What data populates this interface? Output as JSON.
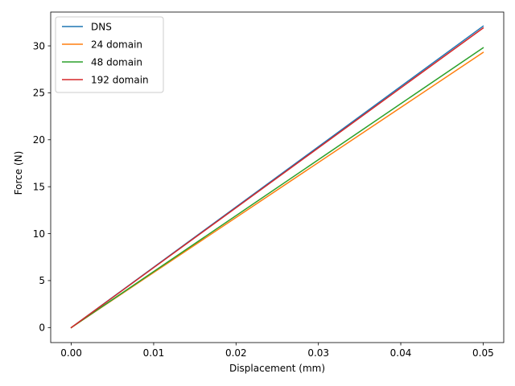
{
  "chart_data": {
    "type": "line",
    "title": "",
    "xlabel": "Displacement (mm)",
    "ylabel": "Force (N)",
    "xlim": [
      -0.0025,
      0.0525
    ],
    "ylim": [
      -1.6,
      33.6
    ],
    "x_ticks": [
      0.0,
      0.01,
      0.02,
      0.03,
      0.04,
      0.05
    ],
    "x_tick_labels": [
      "0.00",
      "0.01",
      "0.02",
      "0.03",
      "0.04",
      "0.05"
    ],
    "y_ticks": [
      0,
      5,
      10,
      15,
      20,
      25,
      30
    ],
    "y_tick_labels": [
      "0",
      "5",
      "10",
      "15",
      "20",
      "25",
      "30"
    ],
    "grid": false,
    "legend_position": "top-left",
    "series": [
      {
        "name": "DNS",
        "color": "#1f77b4",
        "x": [
          0.0,
          0.05
        ],
        "y": [
          0,
          32.1
        ]
      },
      {
        "name": "24 domain",
        "color": "#ff7f0e",
        "x": [
          0.0,
          0.05
        ],
        "y": [
          0,
          29.3
        ]
      },
      {
        "name": "48 domain",
        "color": "#2ca02c",
        "x": [
          0.0,
          0.05
        ],
        "y": [
          0,
          29.8
        ]
      },
      {
        "name": "192 domain",
        "color": "#d62728",
        "x": [
          0.0,
          0.05
        ],
        "y": [
          0,
          31.9
        ]
      }
    ]
  }
}
